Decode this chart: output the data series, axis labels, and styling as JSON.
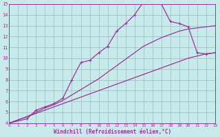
{
  "xlabel": "Windchill (Refroidissement éolien,°C)",
  "bg_color": "#c8eaea",
  "line_color": "#993399",
  "grid_color": "#99bbbb",
  "xlim": [
    0,
    23
  ],
  "ylim": [
    4,
    15
  ],
  "xticks": [
    0,
    1,
    2,
    3,
    4,
    5,
    6,
    7,
    8,
    9,
    10,
    11,
    12,
    13,
    14,
    15,
    16,
    17,
    18,
    19,
    20,
    21,
    22,
    23
  ],
  "yticks": [
    4,
    5,
    6,
    7,
    8,
    9,
    10,
    11,
    12,
    13,
    14,
    15
  ],
  "series1_x": [
    0,
    1,
    2,
    3,
    4,
    5,
    6,
    7,
    8,
    9,
    10,
    11,
    12,
    13,
    14,
    15,
    16,
    17,
    18,
    19,
    20,
    21,
    22,
    23
  ],
  "series1_y": [
    4.0,
    4.3,
    4.6,
    4.9,
    5.2,
    5.5,
    5.8,
    6.1,
    6.4,
    6.7,
    7.0,
    7.3,
    7.6,
    7.9,
    8.2,
    8.5,
    8.8,
    9.1,
    9.4,
    9.7,
    10.0,
    10.2,
    10.4,
    10.5
  ],
  "series2_x": [
    0,
    1,
    2,
    3,
    4,
    5,
    6,
    7,
    8,
    9,
    10,
    11,
    12,
    13,
    14,
    15,
    16,
    17,
    18,
    19,
    20,
    21,
    22,
    23
  ],
  "series2_y": [
    4.0,
    4.3,
    4.6,
    5.0,
    5.4,
    5.7,
    6.1,
    6.6,
    7.1,
    7.6,
    8.1,
    8.7,
    9.3,
    9.9,
    10.5,
    11.1,
    11.5,
    11.9,
    12.2,
    12.5,
    12.7,
    12.8,
    12.9,
    13.0
  ],
  "series3_x": [
    0,
    2,
    3,
    4,
    5,
    6,
    7,
    8,
    9,
    10,
    11,
    12,
    13,
    14,
    15,
    16,
    17,
    18,
    19,
    20,
    21,
    22,
    23
  ],
  "series3_y": [
    4.0,
    4.4,
    5.2,
    5.5,
    5.8,
    6.3,
    8.0,
    9.6,
    9.8,
    10.5,
    11.1,
    12.5,
    13.2,
    14.0,
    15.2,
    15.2,
    15.0,
    13.4,
    13.2,
    12.9,
    10.5,
    10.4,
    10.5
  ]
}
